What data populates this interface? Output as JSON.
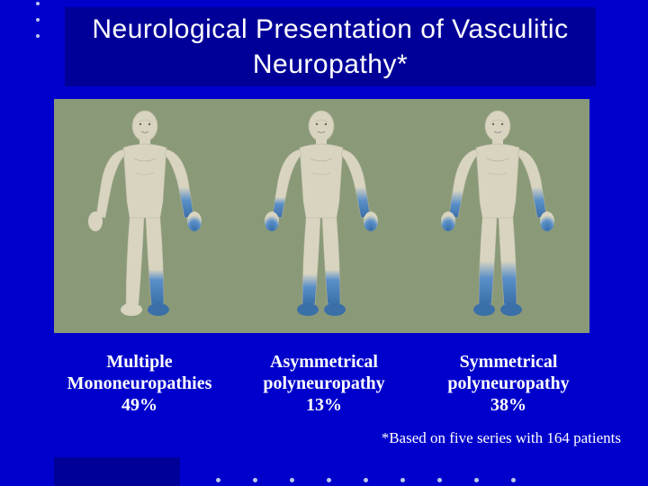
{
  "colors": {
    "slide_bg": "#0000cc",
    "title_box_bg": "#000099",
    "panel_bg": "#8a9a78",
    "skin": "#d8d4c0",
    "skin_shade": "#b8b4a0",
    "affected": "#5a8fc8",
    "affected_dark": "#3a6fa8",
    "text": "#ffffff",
    "dot": "#bac8e8"
  },
  "title": "Neurological Presentation of Vasculitic Neuropathy*",
  "figures": [
    {
      "id": "multiple-mononeuropathies",
      "label_line1": "Multiple",
      "label_line2": "Mononeuropathies",
      "percent": "49%",
      "affected": {
        "left_hand": false,
        "right_hand": true,
        "left_foot": false,
        "right_foot": true,
        "symmetric_gradient": false
      }
    },
    {
      "id": "asymmetrical-polyneuropathy",
      "label_line1": "Asymmetrical",
      "label_line2": "polyneuropathy",
      "percent": "13%",
      "affected": {
        "left_hand": true,
        "right_hand": true,
        "left_foot": true,
        "right_foot": true,
        "symmetric_gradient": false,
        "asym": true
      }
    },
    {
      "id": "symmetrical-polyneuropathy",
      "label_line1": "Symmetrical",
      "label_line2": "polyneuropathy",
      "percent": "38%",
      "affected": {
        "left_hand": true,
        "right_hand": true,
        "left_foot": true,
        "right_foot": true,
        "symmetric_gradient": true
      }
    }
  ],
  "footnote": "*Based on five series with 164 patients",
  "typography": {
    "title_fontsize": 30,
    "label_fontsize": 20,
    "footnote_fontsize": 17
  }
}
